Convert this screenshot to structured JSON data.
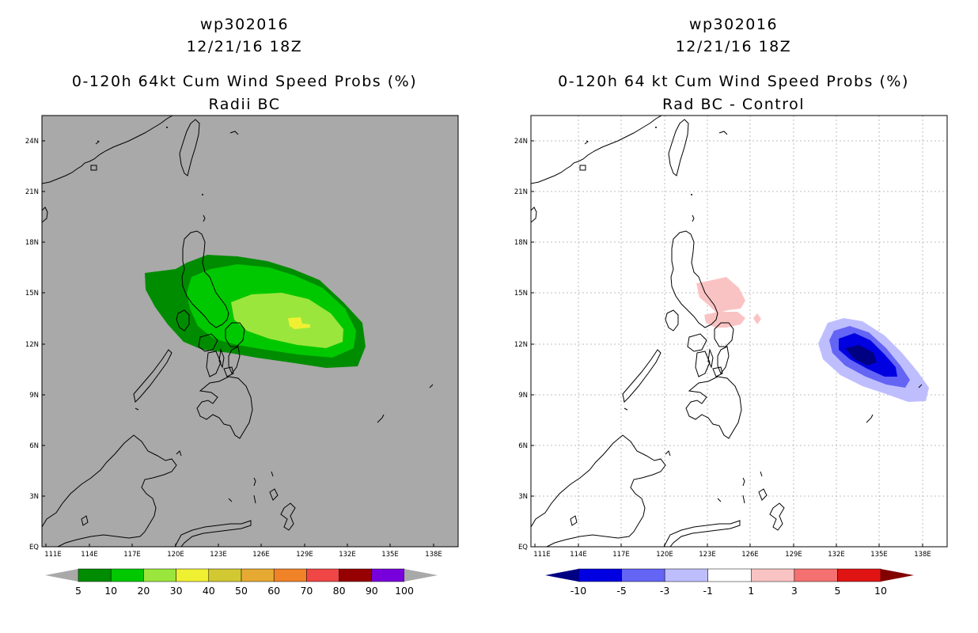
{
  "left_panel": {
    "title_line1": "wp302016",
    "title_line2": "12/21/16 18Z",
    "title_line3": "0-120h 64kt Cum Wind Speed Probs (%)",
    "title_line4": "Radii BC",
    "background_color": "#a9a9a9",
    "colorbar": {
      "labels": [
        "5",
        "10",
        "20",
        "30",
        "40",
        "50",
        "60",
        "70",
        "80",
        "90",
        "100"
      ],
      "colors": [
        "#008c00",
        "#00c800",
        "#9be63c",
        "#f0f032",
        "#d2c832",
        "#e6aa32",
        "#f08228",
        "#f04646",
        "#960000",
        "#7800dc"
      ],
      "end_color": "#a9a9a9"
    }
  },
  "right_panel": {
    "title_line1": "wp302016",
    "title_line2": "12/21/16 18Z",
    "title_line3": "0-120h 64 kt Cum Wind Speed Probs (%)",
    "title_line4": "Rad BC - Control",
    "colorbar": {
      "labels": [
        "-10",
        "-5",
        "-3",
        "-1",
        "1",
        "3",
        "5",
        "10"
      ],
      "colors": [
        "#0000e1",
        "#6464f5",
        "#bebeff",
        "#ffffff",
        "#fac3c3",
        "#f57070",
        "#e11414"
      ],
      "left_end_color": "#000082",
      "right_end_color": "#820000"
    }
  },
  "axes": {
    "lat_labels": [
      "24N",
      "21N",
      "18N",
      "15N",
      "12N",
      "9N",
      "6N",
      "3N",
      "EQ"
    ],
    "lon_labels": [
      "111E",
      "114E",
      "117E",
      "120E",
      "123E",
      "126E",
      "129E",
      "132E",
      "135E",
      "138E"
    ]
  }
}
